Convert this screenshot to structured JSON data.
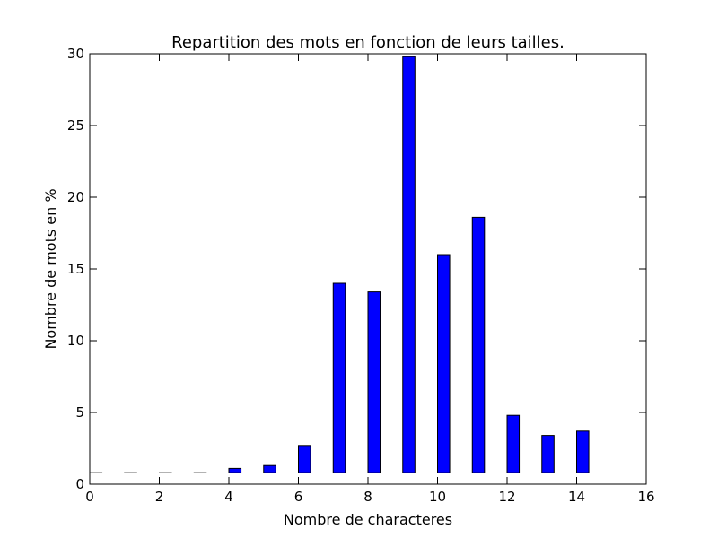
{
  "chart_data": {
    "type": "bar",
    "title": "Repartition des mots en fonction de leurs tailles.",
    "xlabel": "Nombre de characteres",
    "ylabel": "Nombre de mots en %",
    "xlim": [
      0,
      16
    ],
    "ylim": [
      0,
      30
    ],
    "xticks": [
      "0",
      "2",
      "4",
      "6",
      "8",
      "10",
      "12",
      "14",
      "16"
    ],
    "yticks": [
      "0",
      "5",
      "10",
      "15",
      "20",
      "25",
      "30"
    ],
    "grid": false,
    "bar_width": 0.35,
    "series": [
      {
        "x": [
          0,
          1,
          2,
          3,
          4,
          5,
          6,
          7,
          8,
          9,
          10,
          11,
          12,
          13,
          14
        ],
        "bottom": 0.8,
        "tops": [
          0.8,
          0.8,
          0.8,
          0.8,
          1.1,
          1.3,
          2.7,
          14.0,
          13.4,
          29.8,
          16.0,
          18.6,
          4.8,
          3.4,
          3.7
        ]
      }
    ],
    "bar_color": "#0000ff",
    "edge_color": "#000000"
  }
}
